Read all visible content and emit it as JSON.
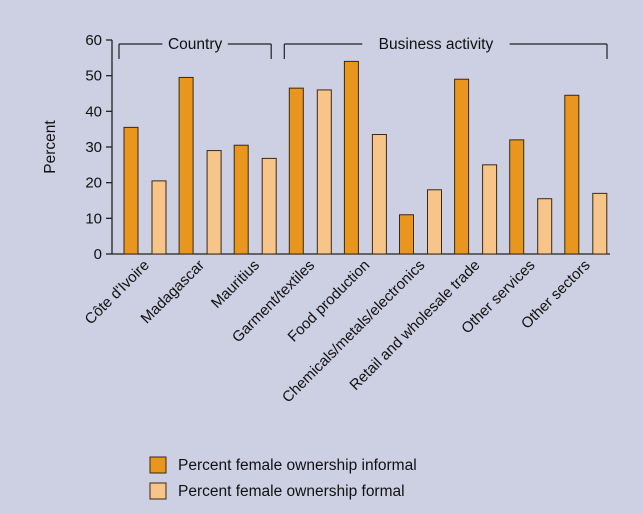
{
  "chart_data": {
    "type": "bar",
    "title": "",
    "xlabel": "",
    "ylabel": "Percent",
    "ylim": [
      0,
      60
    ],
    "yticks": [
      0,
      10,
      20,
      30,
      40,
      50,
      60
    ],
    "categories": [
      "Côte d'Ivoire",
      "Madagascar",
      "Mauritius",
      "Garment/textiles",
      "Food production",
      "Chemicals/metals/electronics",
      "Retail and wholesale trade",
      "Other services",
      "Other sectors"
    ],
    "series": [
      {
        "name": "Percent female ownership informal",
        "color": "#e8961e",
        "values": [
          35.5,
          49.5,
          30.5,
          46.5,
          54,
          11,
          49,
          32,
          44.5
        ]
      },
      {
        "name": "Percent female ownership formal",
        "color": "#f7c48a",
        "values": [
          20.5,
          29,
          26.8,
          46,
          33.5,
          18,
          25,
          15.5,
          17
        ]
      }
    ],
    "groups": [
      {
        "label": "Country",
        "start": 0,
        "end": 2
      },
      {
        "label": "Business activity",
        "start": 3,
        "end": 8
      }
    ],
    "grid": false,
    "legend_position": "bottom"
  }
}
